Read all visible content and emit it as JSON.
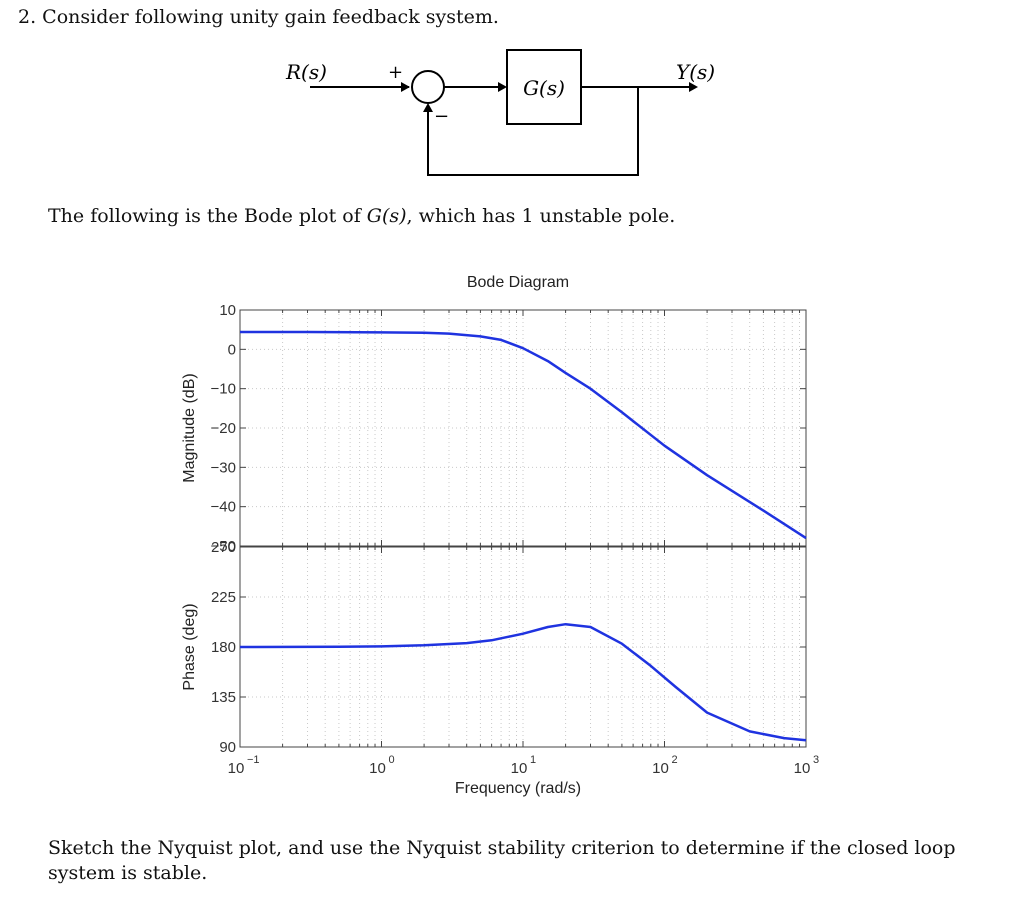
{
  "problem": {
    "title": "2. Consider following unity gain feedback system.",
    "intro_prefix": "The following is the Bode plot of ",
    "intro_math": "G(s)",
    "intro_suffix": ", which has 1 unstable pole.",
    "question": "Sketch the Nyquist plot, and use the Nyquist stability criterion to determine if the closed loop system is stable."
  },
  "block_diagram": {
    "input_label": "R(s)",
    "output_label": "Y(s)",
    "block_label": "G(s)",
    "plus_sign": "+",
    "minus_sign": "−"
  },
  "chart_data": [
    {
      "type": "line",
      "title": "Bode Diagram",
      "xlabel": "Frequency (rad/s)",
      "ylabel": "Magnitude (dB)",
      "xscale": "log",
      "xlim": [
        0.1,
        1000
      ],
      "ylim": [
        -50,
        10
      ],
      "xticks": [
        0.1,
        1,
        10,
        100,
        1000
      ],
      "xtick_labels": [
        "10^-1",
        "10^0",
        "10^1",
        "10^2",
        "10^3"
      ],
      "yticks": [
        10,
        0,
        -10,
        -20,
        -30,
        -40,
        -50
      ],
      "ytick_labels": [
        "10",
        "0",
        "−10",
        "−20",
        "−30",
        "−40",
        "−50"
      ],
      "grid": true,
      "color": "#1f33e0",
      "series": [
        {
          "x": [
            0.1,
            0.3,
            1,
            2,
            3,
            5,
            7,
            10,
            15,
            20,
            30,
            50,
            100,
            200,
            500,
            1000
          ],
          "y": [
            4.4,
            4.4,
            4.3,
            4.2,
            4.0,
            3.3,
            2.4,
            0.3,
            -3.0,
            -6.0,
            -10.0,
            -16.0,
            -24.5,
            -32.0,
            -41.0,
            -48.0
          ]
        }
      ]
    },
    {
      "type": "line",
      "xlabel": "Frequency (rad/s)",
      "ylabel": "Phase (deg)",
      "xscale": "log",
      "xlim": [
        0.1,
        1000
      ],
      "ylim": [
        90,
        270
      ],
      "xticks": [
        0.1,
        1,
        10,
        100,
        1000
      ],
      "xtick_labels": [
        "10^-1",
        "10^0",
        "10^1",
        "10^2",
        "10^3"
      ],
      "yticks": [
        270,
        225,
        180,
        135,
        90
      ],
      "ytick_labels": [
        "270",
        "225",
        "180",
        "135",
        "90"
      ],
      "grid": true,
      "color": "#1f33e0",
      "series": [
        {
          "x": [
            0.1,
            0.5,
            1,
            2,
            4,
            6,
            10,
            15,
            20,
            30,
            50,
            80,
            120,
            200,
            400,
            700,
            1000
          ],
          "y": [
            180.0,
            180.2,
            180.5,
            181.5,
            183.5,
            186.0,
            192.0,
            198.0,
            200.5,
            198.0,
            183.0,
            163.0,
            144.0,
            121.0,
            104.0,
            98.0,
            96.0
          ]
        }
      ]
    }
  ]
}
